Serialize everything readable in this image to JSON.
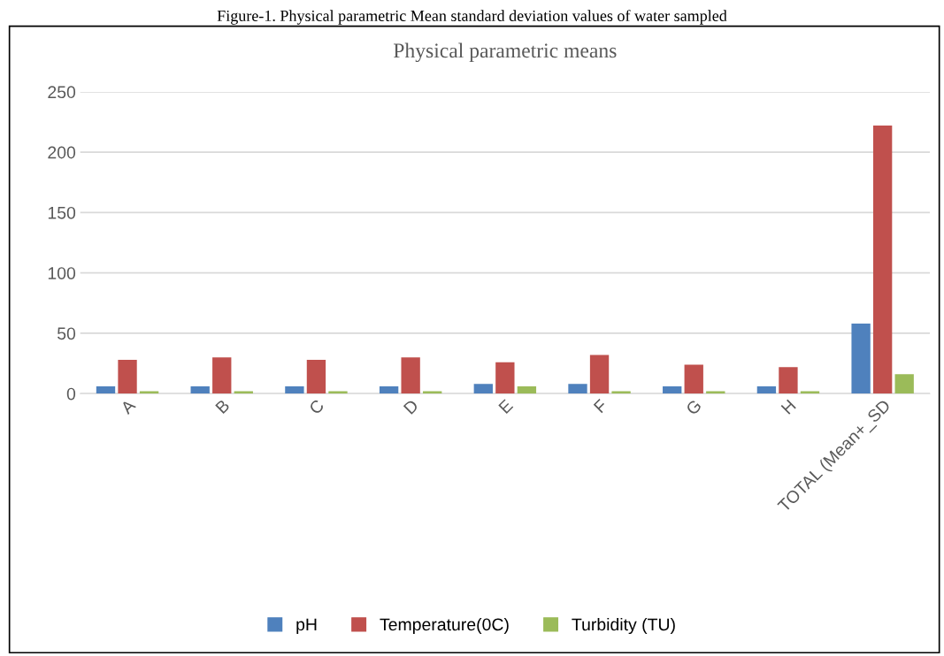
{
  "chart_data": {
    "type": "bar",
    "title": "Physical parametric means",
    "annotations": [
      "Figure-1. Physical parametric Mean standard deviation values of water sampled"
    ],
    "categories": [
      "A",
      "B",
      "C",
      "D",
      "E",
      "F",
      "G",
      "H",
      "TOTAL (Mean+_SD"
    ],
    "series": [
      {
        "name": "pH",
        "color": "#4f81bd",
        "values": [
          6,
          6,
          6,
          6,
          8,
          8,
          6,
          6,
          58
        ]
      },
      {
        "name": "Temperature(0C)",
        "color": "#c0504d",
        "values": [
          28,
          30,
          28,
          30,
          26,
          32,
          24,
          22,
          222
        ]
      },
      {
        "name": "Turbidity (TU)",
        "color": "#9bbb59",
        "values": [
          2,
          2,
          2,
          2,
          6,
          2,
          2,
          2,
          16
        ]
      }
    ],
    "ylim": [
      0,
      250
    ],
    "yticks": [
      0,
      50,
      100,
      150,
      200,
      250
    ],
    "grid": "y",
    "legend": "bottom"
  }
}
